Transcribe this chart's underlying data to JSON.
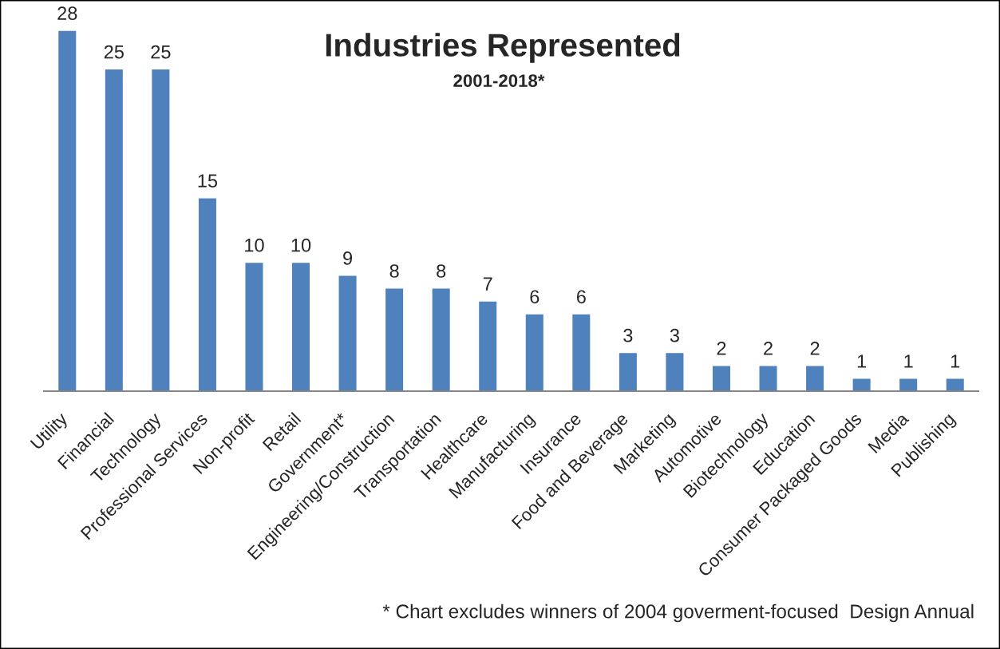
{
  "chart_data": {
    "type": "bar",
    "title": "Industries Represented",
    "subtitle": "2001-2018*",
    "categories": [
      "Utility",
      "Financial",
      "Technology",
      "Professional Services",
      "Non-profit",
      "Retail",
      "Government*",
      "Engineering/Construction",
      "Transportation",
      "Healthcare",
      "Manufacturing",
      "Insurance",
      "Food and Beverage",
      "Marketing",
      "Automotive",
      "Biotechnology",
      "Education",
      "Consumer Packaged Goods",
      "Media",
      "Publishing"
    ],
    "values": [
      28,
      25,
      25,
      15,
      10,
      10,
      9,
      8,
      8,
      7,
      6,
      6,
      3,
      3,
      2,
      2,
      2,
      1,
      1,
      1
    ],
    "color": "#4f81bd",
    "data_labels": true,
    "annotations": [
      "* Chart excludes winners of 2004 goverment-focused  Design Annual"
    ]
  }
}
